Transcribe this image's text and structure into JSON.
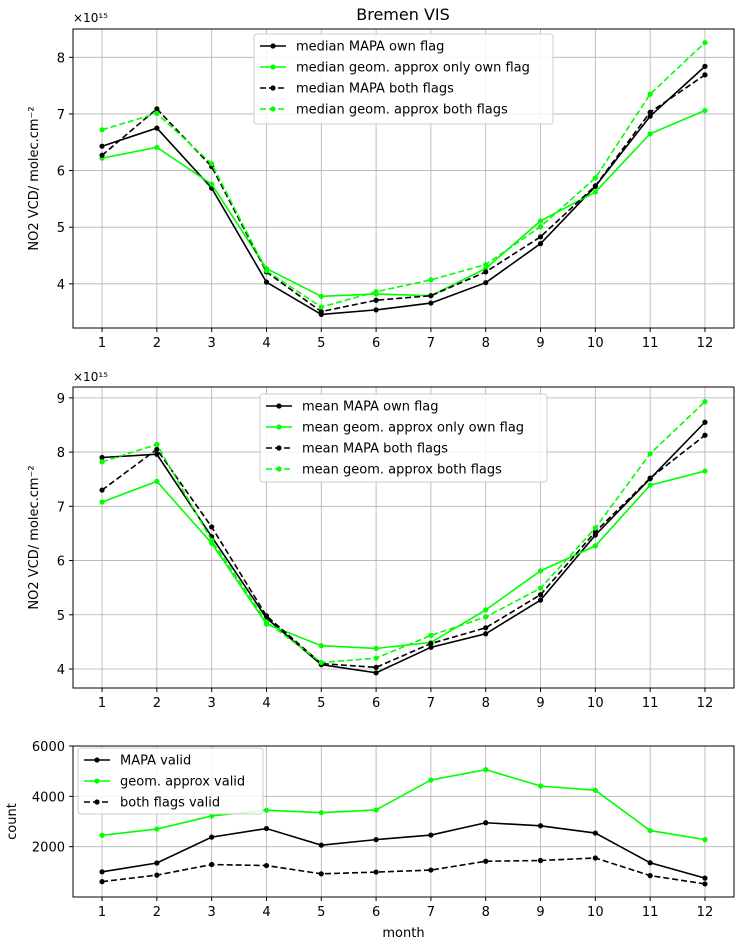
{
  "figure": {
    "title": "Bremen VIS"
  },
  "chart_data": [
    {
      "type": "line",
      "title": "Bremen VIS",
      "xlabel": "",
      "ylabel": "NO2 VCD/ molec.cm⁻²",
      "offset_label": "×10¹⁵",
      "x": [
        1,
        2,
        3,
        4,
        5,
        6,
        7,
        8,
        9,
        10,
        11,
        12
      ],
      "xlim": [
        0.47,
        12.53
      ],
      "ylim": [
        3.22,
        8.5
      ],
      "yticks": [
        4,
        5,
        6,
        7,
        8
      ],
      "grid": true,
      "legend": "upper-center",
      "series": [
        {
          "name": "median MAPA own flag",
          "color": "#000000",
          "dash": false,
          "values": [
            6.43,
            6.75,
            5.69,
            4.03,
            3.46,
            3.54,
            3.66,
            4.02,
            4.71,
            5.72,
            6.96,
            7.84
          ]
        },
        {
          "name": "median geom. approx only own flag",
          "color": "#00ff00",
          "dash": false,
          "values": [
            6.22,
            6.41,
            5.76,
            4.27,
            3.78,
            3.82,
            3.79,
            4.27,
            5.11,
            5.62,
            6.65,
            7.06
          ]
        },
        {
          "name": "median MAPA both flags",
          "color": "#000000",
          "dash": true,
          "values": [
            6.27,
            7.09,
            6.07,
            4.21,
            3.51,
            3.71,
            3.79,
            4.21,
            4.83,
            5.73,
            7.03,
            7.69
          ]
        },
        {
          "name": "median geom. approx both flags",
          "color": "#00ff00",
          "dash": true,
          "values": [
            6.72,
            7.01,
            6.12,
            4.23,
            3.59,
            3.86,
            4.07,
            4.34,
            5.01,
            5.87,
            7.35,
            8.26
          ]
        }
      ]
    },
    {
      "type": "line",
      "xlabel": "",
      "ylabel": "NO2 VCD/ molec.cm⁻²",
      "offset_label": "×10¹⁵",
      "x": [
        1,
        2,
        3,
        4,
        5,
        6,
        7,
        8,
        9,
        10,
        11,
        12
      ],
      "xlim": [
        0.47,
        12.53
      ],
      "ylim": [
        3.65,
        9.2
      ],
      "yticks": [
        4,
        5,
        6,
        7,
        8,
        9
      ],
      "grid": true,
      "legend": "upper-center",
      "series": [
        {
          "name": "mean MAPA own flag",
          "color": "#000000",
          "dash": false,
          "values": [
            7.9,
            7.96,
            6.44,
            4.94,
            4.08,
            3.93,
            4.4,
            4.65,
            5.27,
            6.47,
            7.51,
            8.55
          ]
        },
        {
          "name": "mean geom. approx only own flag",
          "color": "#00ff00",
          "dash": false,
          "values": [
            7.08,
            7.46,
            6.32,
            4.83,
            4.43,
            4.38,
            4.49,
            5.09,
            5.81,
            6.27,
            7.39,
            7.65
          ]
        },
        {
          "name": "mean MAPA both flags",
          "color": "#000000",
          "dash": true,
          "values": [
            7.3,
            8.05,
            6.62,
            4.98,
            4.1,
            4.03,
            4.47,
            4.76,
            5.37,
            6.53,
            7.52,
            8.31
          ]
        },
        {
          "name": "mean geom. approx both flags",
          "color": "#00ff00",
          "dash": true,
          "values": [
            7.82,
            8.14,
            6.37,
            4.87,
            4.12,
            4.2,
            4.62,
            4.96,
            5.49,
            6.6,
            7.97,
            8.93
          ]
        }
      ]
    },
    {
      "type": "line",
      "xlabel": "month",
      "ylabel": "count",
      "x": [
        1,
        2,
        3,
        4,
        5,
        6,
        7,
        8,
        9,
        10,
        11,
        12
      ],
      "xlim": [
        0.47,
        12.53
      ],
      "ylim": [
        0,
        6000
      ],
      "yticks": [
        2000,
        4000,
        6000
      ],
      "grid": true,
      "legend": "upper-left",
      "series": [
        {
          "name": "MAPA valid",
          "color": "#000000",
          "dash": false,
          "values": [
            1000,
            1350,
            2380,
            2720,
            2060,
            2280,
            2460,
            2950,
            2830,
            2540,
            1360,
            750
          ]
        },
        {
          "name": "geom. approx valid",
          "color": "#00ff00",
          "dash": false,
          "values": [
            2450,
            2700,
            3220,
            3450,
            3350,
            3460,
            4650,
            5060,
            4410,
            4240,
            2640,
            2280
          ]
        },
        {
          "name": "both flags valid",
          "color": "#000000",
          "dash": true,
          "values": [
            610,
            870,
            1290,
            1250,
            920,
            990,
            1070,
            1420,
            1450,
            1550,
            850,
            520
          ]
        }
      ]
    }
  ]
}
